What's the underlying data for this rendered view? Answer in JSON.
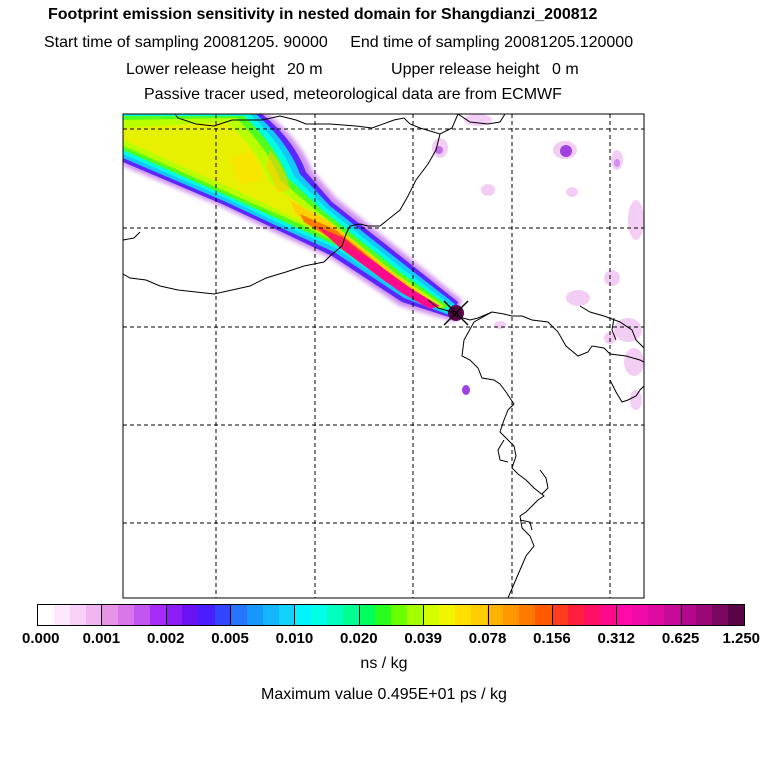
{
  "chart_data": {
    "type": "heatmap",
    "title": "Footprint emission sensitivity in nested domain for Shangdianzi_200812",
    "subtitle_lines": {
      "start_label": "Start time of sampling",
      "start_value": "20081205. 90000",
      "end_label": "End time of sampling",
      "end_value": "20081205.120000",
      "lower_label": "Lower release height",
      "lower_value": "20 m",
      "upper_label": "Upper release height",
      "upper_value": "0 m",
      "tracer_note": "Passive tracer used, meteorological data are from ECMWF"
    },
    "colorbar": {
      "tick_labels": [
        "0.000",
        "0.001",
        "0.002",
        "0.005",
        "0.010",
        "0.020",
        "0.039",
        "0.078",
        "0.156",
        "0.312",
        "0.625",
        "1.250"
      ],
      "colors": [
        "#ffffff",
        "#fde8fd",
        "#f8d0f8",
        "#f1b6f2",
        "#e594e8",
        "#d876ea",
        "#c256f2",
        "#a82cf7",
        "#8a1ef5",
        "#6a12f2",
        "#4a1cff",
        "#3246ff",
        "#2575ff",
        "#1798ff",
        "#15b5ff",
        "#14d2ff",
        "#00f5ff",
        "#00ffe6",
        "#00ffbf",
        "#00ff8f",
        "#00ff5a",
        "#28ff20",
        "#6aff00",
        "#a6ff00",
        "#d2ff00",
        "#f3f500",
        "#ffe000",
        "#ffcc00",
        "#ffb200",
        "#ff9800",
        "#ff7a00",
        "#ff5a00",
        "#ff3c1e",
        "#ff1e3c",
        "#ff0f64",
        "#ff0a8c",
        "#ff0aa8",
        "#f00aa8",
        "#dc0aa0",
        "#c80a98",
        "#b4088c",
        "#9a0878",
        "#7a0660",
        "#5a0448"
      ],
      "units": "ns / kg"
    },
    "max_value_text": "Maximum value  0.495E+01 ps / kg",
    "receptor_marker": "x-marker"
  }
}
